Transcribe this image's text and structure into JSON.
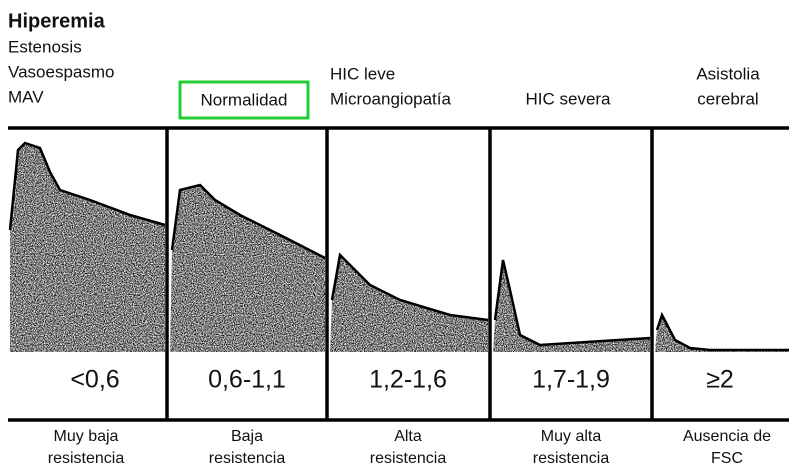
{
  "panels": [
    {
      "top_title": "Hiperemia",
      "top_lines": [
        "Estenosis",
        "Vasoespasmo",
        "MAV"
      ],
      "index": "<0,6",
      "bottom": [
        "Muy baja",
        "resistencia"
      ]
    },
    {
      "top_lines": [
        "Normalidad"
      ],
      "index": "0,6-1,1",
      "bottom": [
        "Baja",
        "resistencia"
      ]
    },
    {
      "top_lines": [
        "HIC leve",
        "Microangiopatía"
      ],
      "index": "1,2-1,6",
      "bottom": [
        "Alta",
        "resistencia"
      ]
    },
    {
      "top_lines": [
        "HIC severa"
      ],
      "index": "1,7-1,9",
      "bottom": [
        "Muy alta",
        "resistencia"
      ]
    },
    {
      "top_lines": [
        "Asistolia",
        "cerebral"
      ],
      "index": "≥2",
      "bottom": [
        "Ausencia de",
        "FSC"
      ]
    }
  ]
}
